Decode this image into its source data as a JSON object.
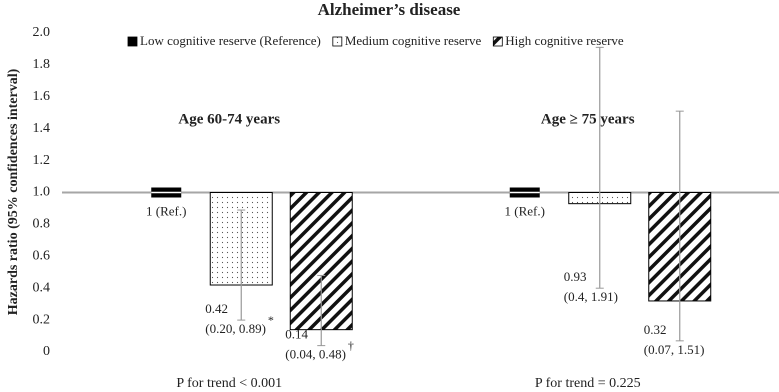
{
  "chart_data": {
    "type": "bar",
    "title": "Alzheimer’s disease",
    "y_label": "Hazards ratio (95% confidences interval)",
    "categories": [
      "Age 60-74 years",
      "Age ≥ 75 years"
    ],
    "trend_labels": [
      "P for trend < 0.001",
      "P for trend = 0.225"
    ],
    "reference": 1,
    "ylim": [
      0,
      2
    ],
    "yticks": [
      0,
      0.2,
      0.4,
      0.6,
      0.8,
      {
        "value": 1,
        "label": "1.0"
      },
      1.2,
      1.4,
      1.6,
      1.8,
      {
        "value": 2,
        "label": "2.0"
      }
    ],
    "series": [
      {
        "name": "Low cognitive reserve (Reference)",
        "color": "#000000",
        "pattern": "solid",
        "values": [
          1,
          1
        ],
        "value_labels": [
          "1 (Ref.)",
          "1 (Ref.)"
        ]
      },
      {
        "name": "Medium cognitive reserve",
        "color": "#000000",
        "pattern": "dots",
        "values": [
          0.42,
          0.93
        ],
        "lower": [
          0.2,
          0.4
        ],
        "upper": [
          0.89,
          1.91
        ],
        "ci_labels": [
          "(0.20, 0.89)",
          "(0.4, 1.91)"
        ],
        "notes": [
          "*",
          null
        ]
      },
      {
        "name": "High cognitive reserve",
        "color": "#000000",
        "pattern": "hatch",
        "values": [
          0.14,
          0.32
        ],
        "lower": [
          0.04,
          0.07
        ],
        "upper": [
          0.48,
          1.51
        ],
        "ci_labels": [
          "(0.04, 0.48)",
          "(0.07, 1.51)"
        ],
        "notes": [
          "†",
          null
        ]
      }
    ]
  }
}
